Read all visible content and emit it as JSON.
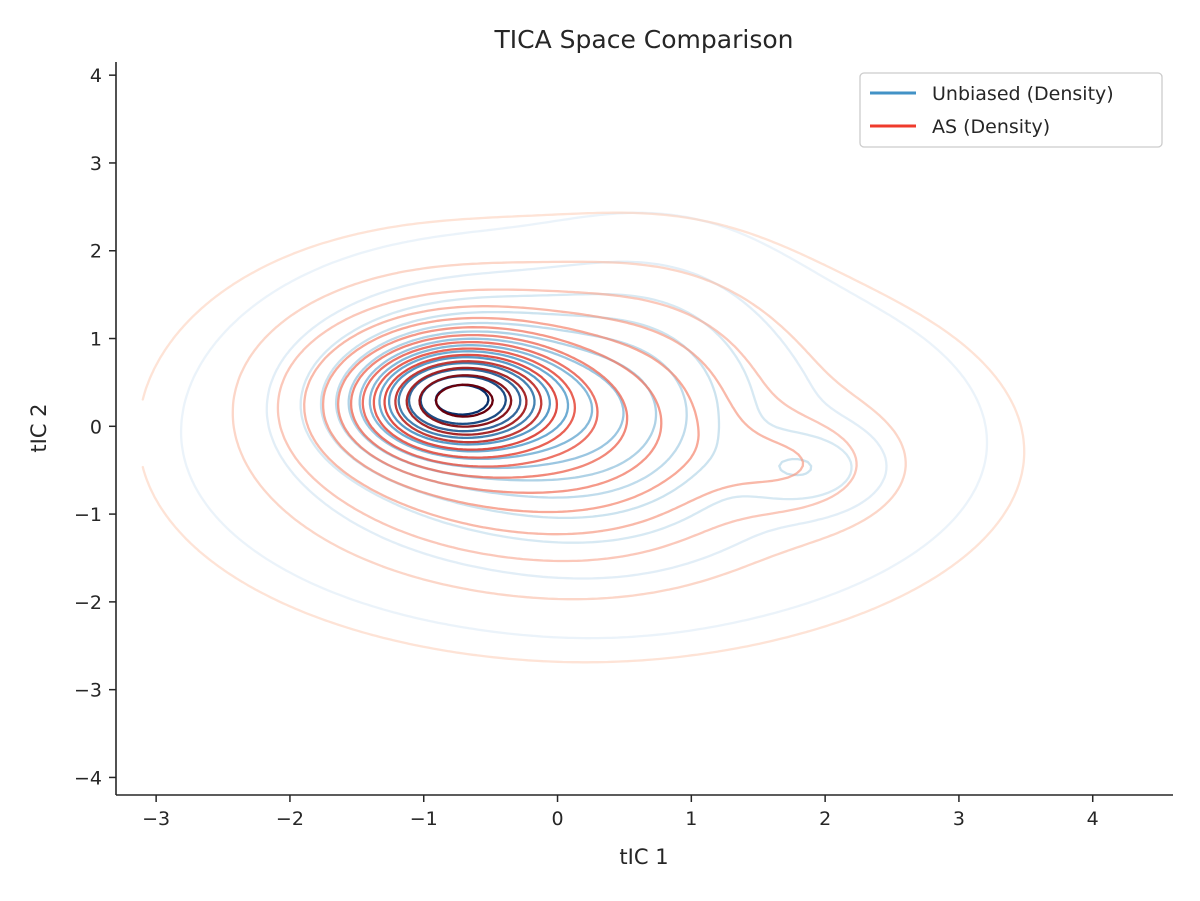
{
  "chart_data": {
    "type": "contour",
    "title": "TICA Space Comparison",
    "xlabel": "tIC 1",
    "ylabel": "tIC 2",
    "xlim": [
      -3.3,
      4.6
    ],
    "ylim": [
      -4.2,
      4.15
    ],
    "x_ticks": [
      -3,
      -2,
      -1,
      0,
      1,
      2,
      3,
      4
    ],
    "y_ticks": [
      -4,
      -3,
      -2,
      -1,
      0,
      1,
      2,
      3,
      4
    ],
    "x_tick_labels": [
      "−3",
      "−2",
      "−1",
      "0",
      "1",
      "2",
      "3",
      "4"
    ],
    "y_tick_labels": [
      "−4",
      "−3",
      "−2",
      "−1",
      "0",
      "1",
      "2",
      "3",
      "4"
    ],
    "grid": false,
    "legend_position": "top-right",
    "series": [
      {
        "name": "Unbiased (Density)",
        "color": "#4292c6",
        "colormap": "Blues",
        "levels": 14,
        "main_mode": {
          "center": [
            -0.78,
            0.32
          ],
          "outer_extent_x": [
            -2.45,
            3.05
          ],
          "outer_extent_y": [
            -2.3,
            2.45
          ]
        },
        "secondary_mode": {
          "center": [
            1.85,
            -0.48
          ]
        }
      },
      {
        "name": "AS (Density)",
        "color": "#ef3b2c",
        "colormap": "Reds",
        "levels": 14,
        "main_mode": {
          "center": [
            -0.75,
            0.32
          ],
          "outer_extent_x": [
            -2.6,
            3.2
          ],
          "outer_extent_y": [
            -2.75,
            2.6
          ]
        },
        "secondary_mode": {
          "center": [
            1.8,
            -0.45
          ]
        }
      }
    ]
  }
}
